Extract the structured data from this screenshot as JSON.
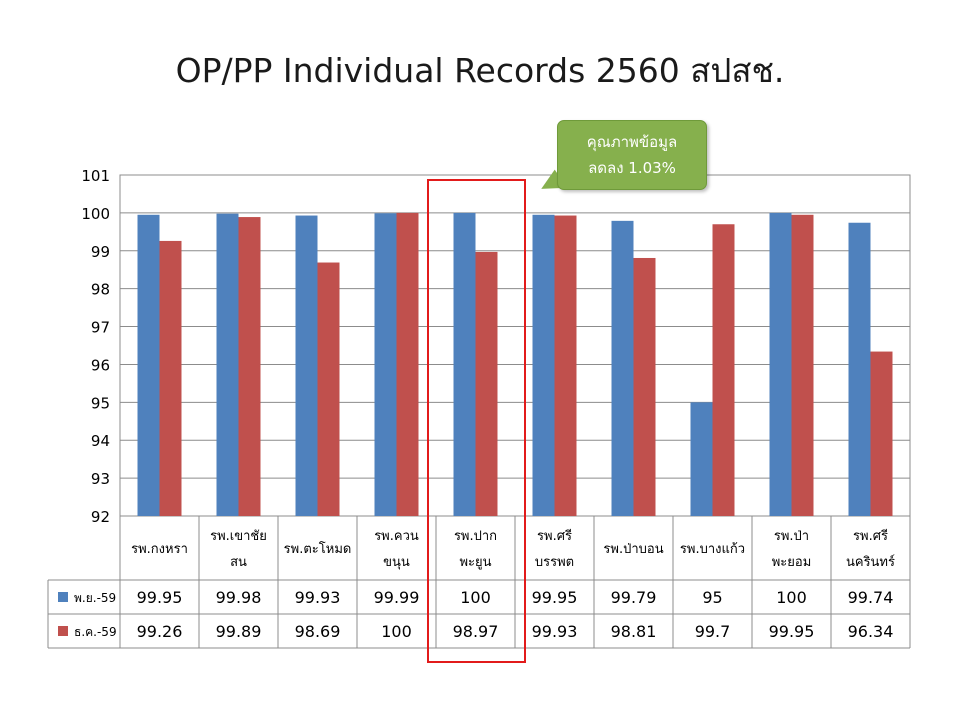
{
  "title": "OP/PP Individual Records 2560 สปสช.",
  "callout": {
    "line1": "คุณภาพข้อมูล",
    "line2": "ลดลง  1.03%"
  },
  "chart_data": {
    "type": "bar",
    "categories": [
      [
        "รพ.กงหรา"
      ],
      [
        "รพ.เขาชัย",
        "สน"
      ],
      [
        "รพ.ตะโหมด"
      ],
      [
        "รพ.ควน",
        "ขนุน"
      ],
      [
        "รพ.ปาก",
        "พะยูน"
      ],
      [
        "รพ.ศรี",
        "บรรพต"
      ],
      [
        "รพ.ป่าบอน"
      ],
      [
        "รพ.บางแก้ว"
      ],
      [
        "รพ.ป่า",
        "พะยอม"
      ],
      [
        "รพ.ศรี",
        "นครินทร์"
      ]
    ],
    "series": [
      {
        "name": "พ.ย.-59",
        "color": "#4f81bd",
        "values": [
          99.95,
          99.98,
          99.93,
          99.99,
          100,
          99.95,
          99.79,
          95,
          100,
          99.74
        ],
        "labels": [
          "99.95",
          "99.98",
          "99.93",
          "99.99",
          "100",
          "99.95",
          "99.79",
          "95",
          "100",
          "99.74"
        ]
      },
      {
        "name": "ธ.ค.-59",
        "color": "#c0504d",
        "values": [
          99.26,
          99.89,
          98.69,
          100,
          98.97,
          99.93,
          98.81,
          99.7,
          99.95,
          96.34
        ],
        "labels": [
          "99.26",
          "99.89",
          "98.69",
          "100",
          "98.97",
          "99.93",
          "98.81",
          "99.7",
          "99.95",
          "96.34"
        ]
      }
    ],
    "ylim": [
      92,
      101
    ],
    "yticks": [
      "92",
      "93",
      "94",
      "95",
      "96",
      "97",
      "98",
      "99",
      "100",
      "101"
    ],
    "grid": true,
    "legend": "data-table"
  }
}
